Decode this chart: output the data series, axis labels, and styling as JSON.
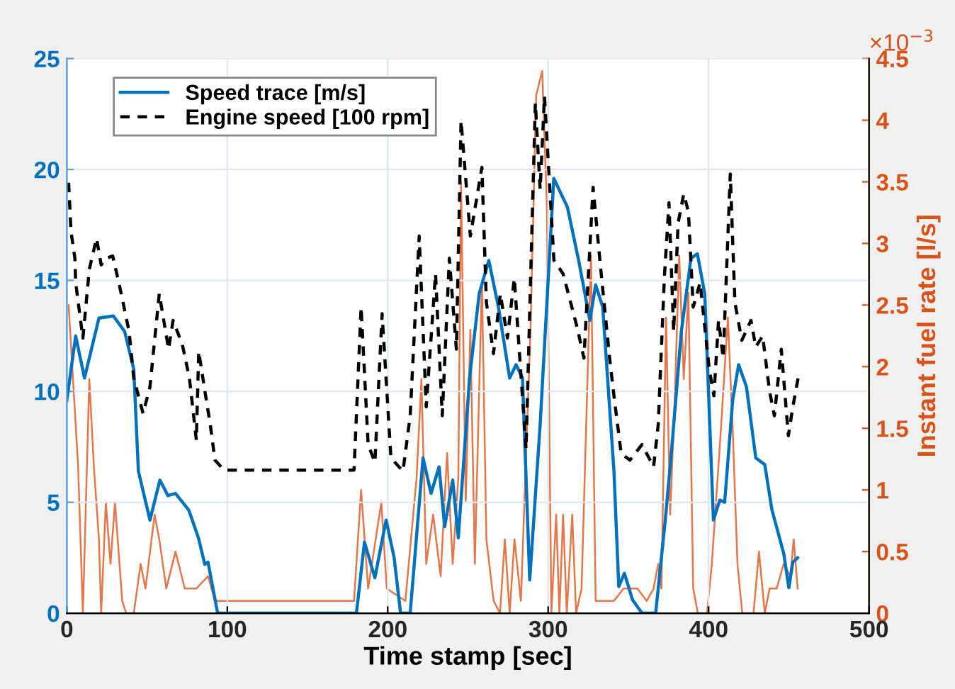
{
  "chart_data": {
    "type": "line",
    "xlabel": "Time stamp [sec]",
    "y2label": "Instant fuel rate [l/s]",
    "annotations": [
      "×10$^{−3}$"
    ],
    "xlim": [
      0,
      500
    ],
    "xticks": [
      0,
      100,
      200,
      300,
      400,
      500
    ],
    "ylim": [
      0,
      25
    ],
    "yticks": [
      0,
      5,
      10,
      15,
      20,
      25
    ],
    "y2lim": [
      0,
      4.5
    ],
    "y2ticks": [
      0,
      0.5,
      1,
      1.5,
      2,
      2.5,
      3,
      3.5,
      4,
      4.5
    ],
    "grid": true,
    "legend": "top left",
    "series": [
      {
        "name": "Speed trace [m/s]",
        "color": "#0072bd",
        "line_style": "solid",
        "axis": "y",
        "x": [
          0,
          5.5,
          11,
          20,
          29,
          36,
          41.7,
          44.6,
          51.8,
          58,
          63,
          67.7,
          76,
          82,
          86,
          88,
          94,
          180.5,
          185.5,
          192,
          199,
          204,
          208,
          214,
          222,
          227,
          232,
          235.5,
          240.5,
          244,
          251,
          257,
          263,
          269,
          276,
          280,
          284,
          288.5,
          295,
          303.5,
          312,
          319,
          326,
          329.6,
          334,
          341,
          344,
          347.5,
          352.6,
          358.5,
          367,
          373,
          377,
          383,
          389,
          393,
          397.6,
          403,
          407,
          410,
          415,
          418.7,
          423.6,
          429.4,
          435,
          439.5,
          446.8,
          450,
          452.5,
          455.5
        ],
        "values": [
          9.6,
          12.5,
          10.6,
          13.3,
          13.4,
          12.7,
          11.0,
          6.4,
          4.2,
          6.0,
          5.3,
          5.4,
          4.65,
          3.4,
          2.2,
          2.3,
          0,
          0,
          3.2,
          1.6,
          4.2,
          2.5,
          0,
          0,
          7.0,
          5.4,
          6.6,
          3.9,
          6.0,
          3.4,
          10.6,
          14.4,
          15.9,
          13.8,
          10.6,
          11.2,
          10.6,
          1.5,
          8.5,
          19.6,
          18.3,
          15.9,
          13.2,
          14.8,
          13.8,
          6.4,
          1.2,
          1.8,
          0.6,
          0,
          0,
          4.2,
          7.4,
          12.7,
          16.0,
          16.2,
          14.4,
          4.2,
          5.1,
          5.0,
          9.6,
          11.2,
          10.2,
          7.0,
          6.7,
          4.65,
          2.7,
          1.15,
          2.3,
          2.5
        ]
      },
      {
        "name": "Engine speed [100 rpm]",
        "color": "#000000",
        "line_style": "dashed",
        "axis": "y",
        "x": [
          1.1,
          2.6,
          5,
          5.5,
          10,
          14,
          18.5,
          21.4,
          24.3,
          28.6,
          33,
          38.8,
          41.7,
          47.5,
          51.8,
          57.6,
          63.4,
          66.2,
          72,
          76.4,
          80.7,
          82.2,
          86.5,
          89.4,
          92.3,
          98,
          179,
          183.4,
          187.8,
          192,
          196.5,
          202,
          209.5,
          214,
          219.6,
          224,
          229.8,
          234,
          238.4,
          242.8,
          245.7,
          251.5,
          254.3,
          258.7,
          261.5,
          265.9,
          270.2,
          274.6,
          278.9,
          286.2,
          292,
          295,
          297.7,
          303.6,
          309.3,
          318,
          322.3,
          328,
          332.5,
          338.3,
          341,
          345.5,
          351,
          358.5,
          365.7,
          368.6,
          372.4,
          375.3,
          378.2,
          381,
          384.5,
          387.4,
          390.4,
          394.7,
          400.4,
          403.3,
          406.2,
          409.1,
          413.5,
          416.4,
          420.7,
          426.4,
          429.4,
          433.7,
          438,
          441,
          445.3,
          449.7,
          452.5,
          456.3
        ],
        "values": [
          19.4,
          17.2,
          16.0,
          14.9,
          12.4,
          15.5,
          16.9,
          15.7,
          16.0,
          16.1,
          14.7,
          12.7,
          10.6,
          9.0,
          10.2,
          14.4,
          11.9,
          13.2,
          12.1,
          10.6,
          7.8,
          11.8,
          9.8,
          8.5,
          6.9,
          6.45,
          6.45,
          13.8,
          7.6,
          6.8,
          13.5,
          7.0,
          6.4,
          8.9,
          17.0,
          9.3,
          15.3,
          8.9,
          16.0,
          11.9,
          22.2,
          17.0,
          18.2,
          20.1,
          14.0,
          11.7,
          14.4,
          12.4,
          15.1,
          7.4,
          23.0,
          19.1,
          23.3,
          15.9,
          15.3,
          12.9,
          11.5,
          19.2,
          15.7,
          11.5,
          9.8,
          7.2,
          6.9,
          7.6,
          6.6,
          8.5,
          15.1,
          18.5,
          12.7,
          17.6,
          18.9,
          18.1,
          13.8,
          14.9,
          11.0,
          9.8,
          13.2,
          11.5,
          19.8,
          14.0,
          12.3,
          13.2,
          12.0,
          12.5,
          10.0,
          8.9,
          11.9,
          8.0,
          9.3,
          10.8
        ]
      },
      {
        "color": "#e5764a",
        "line_style": "solid",
        "axis": "y2",
        "x": [
          1.1,
          2,
          7,
          10,
          14,
          16.8,
          20,
          21.4,
          24.3,
          27.2,
          30,
          34.5,
          37,
          41.7,
          46,
          49,
          54.7,
          57.6,
          62,
          67.7,
          73.5,
          80.7,
          88,
          92.3,
          179,
          183.4,
          187.8,
          196,
          199.4,
          211,
          218,
          221,
          224,
          228.3,
          233,
          237,
          240.5,
          244,
          245.7,
          248.6,
          251.5,
          254.3,
          258.7,
          261.5,
          266,
          270,
          273,
          276,
          279,
          283,
          289,
          292.5,
          296.3,
          299.2,
          302,
          305,
          307,
          309.3,
          311.6,
          315,
          317.4,
          320.8,
          326.7,
          329.6,
          332.5,
          341,
          347,
          355.6,
          361.4,
          365.7,
          368.6,
          370.6,
          373.5,
          376,
          378.8,
          381.7,
          384.5,
          387.4,
          390.4,
          393.3,
          399,
          402,
          407.7,
          412,
          415,
          418,
          421,
          428,
          431.4,
          435,
          438,
          442.4,
          446.8,
          451,
          453,
          455.5
        ],
        "values": [
          2.5,
          2.3,
          1.2,
          0,
          1.9,
          1.2,
          0.6,
          0,
          0.9,
          0.4,
          0.9,
          0.1,
          0,
          0,
          0.4,
          0.2,
          0.8,
          0.6,
          0.2,
          0.5,
          0.2,
          0.2,
          0.3,
          0.1,
          0.1,
          1.0,
          0.2,
          0.9,
          0.2,
          0.1,
          1.1,
          1.9,
          0.4,
          0.8,
          0.3,
          1.3,
          0.4,
          1.1,
          3.5,
          0.9,
          2.3,
          0.4,
          2.7,
          0.6,
          0.1,
          0,
          0.6,
          0,
          0.6,
          0.1,
          2.3,
          4.2,
          4.4,
          3.3,
          0,
          0.8,
          0,
          0.8,
          0,
          0.8,
          0,
          0.2,
          2.9,
          0.1,
          0.1,
          0.1,
          0.2,
          0.2,
          0.1,
          0.2,
          0.4,
          0.2,
          2.4,
          0.8,
          1.7,
          2.9,
          1.9,
          2.6,
          0.2,
          0,
          0,
          0.4,
          1.5,
          2.4,
          1.5,
          0.4,
          0,
          0,
          0.5,
          0,
          0.2,
          0.2,
          0.4,
          0.3,
          0.6,
          0.2
        ]
      }
    ]
  }
}
